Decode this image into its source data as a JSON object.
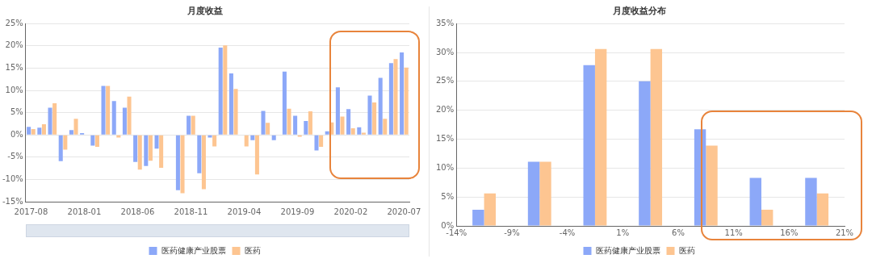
{
  "chart_data": [
    {
      "type": "bar",
      "title": "月度收益",
      "categories": [
        "2017-08",
        null,
        null,
        null,
        null,
        "2018-01",
        null,
        null,
        null,
        null,
        "2018-06",
        null,
        null,
        null,
        null,
        "2018-11",
        null,
        null,
        null,
        null,
        "2019-04",
        null,
        null,
        null,
        null,
        "2019-09",
        null,
        null,
        null,
        null,
        "2020-02",
        null,
        null,
        null,
        null,
        "2020-07"
      ],
      "series": [
        {
          "name": "医药健康产业股票",
          "color": "#8ca8f8",
          "values": [
            1.8,
            1.6,
            6.1,
            -5.9,
            1.1,
            0.4,
            -2.4,
            11.0,
            7.6,
            6.1,
            -6.1,
            -7.0,
            -3.1,
            0,
            -12.4,
            4.3,
            -8.6,
            -0.6,
            19.6,
            13.8,
            0,
            -1.2,
            5.4,
            -1.2,
            14.2,
            4.3,
            3.1,
            -3.5,
            0.8,
            10.7,
            5.8,
            1.7,
            8.8,
            12.8,
            16.1,
            18.5
          ]
        },
        {
          "name": "医药",
          "color": "#fdc591",
          "values": [
            1.3,
            2.4,
            7.1,
            -3.3,
            3.6,
            null,
            -2.7,
            11.0,
            -0.6,
            8.6,
            -7.8,
            -5.8,
            -7.4,
            0,
            -13.1,
            4.3,
            -12.2,
            -2.6,
            20.1,
            10.3,
            -2.6,
            -8.9,
            2.7,
            0,
            5.9,
            -0.4,
            5.3,
            -2.7,
            2.8,
            4.1,
            1.5,
            0.5,
            7.3,
            3.6,
            17.0,
            15.1
          ]
        }
      ],
      "ylim": [
        -15,
        25
      ],
      "yticks": [
        {
          "value": -15,
          "label": "-15%"
        },
        {
          "value": -10,
          "label": "-10%"
        },
        {
          "value": -5,
          "label": "-5%"
        },
        {
          "value": 0,
          "label": "0%"
        },
        {
          "value": 5,
          "label": "5%"
        },
        {
          "value": 10,
          "label": "10%"
        },
        {
          "value": 15,
          "label": "15%"
        },
        {
          "value": 20,
          "label": "20%"
        },
        {
          "value": 25,
          "label": "25%"
        }
      ],
      "grid": "y",
      "legend": "bottom"
    },
    {
      "type": "histogram",
      "title": "月度收益分布",
      "bins": [
        -14,
        -9,
        -4,
        1,
        6,
        11,
        16,
        21
      ],
      "series": [
        {
          "name": "医药健康产业股票",
          "color": "#8ca8f8",
          "values": [
            2.8,
            11.1,
            27.8,
            25,
            16.7,
            8.3,
            8.3
          ]
        },
        {
          "name": "医药",
          "color": "#fdc591",
          "values": [
            5.6,
            11.1,
            30.6,
            30.6,
            13.9,
            2.8,
            5.6
          ]
        }
      ],
      "xlim": [
        -14,
        21
      ],
      "xticks": [
        {
          "value": -14,
          "label": "-14%"
        },
        {
          "value": -9,
          "label": "-9%"
        },
        {
          "value": -4,
          "label": "-4%"
        },
        {
          "value": 1,
          "label": "1%"
        },
        {
          "value": 6,
          "label": "6%"
        },
        {
          "value": 11,
          "label": "11%"
        },
        {
          "value": 16,
          "label": "16%"
        },
        {
          "value": 21,
          "label": "21%"
        }
      ],
      "ylim": [
        0,
        35
      ],
      "yticks": [
        {
          "value": 0,
          "label": "0%"
        },
        {
          "value": 5,
          "label": "5%"
        },
        {
          "value": 10,
          "label": "10%"
        },
        {
          "value": 15,
          "label": "15%"
        },
        {
          "value": 20,
          "label": "20%"
        },
        {
          "value": 25,
          "label": "25%"
        },
        {
          "value": 30,
          "label": "30%"
        },
        {
          "value": 35,
          "label": "35%"
        }
      ],
      "grid": "y",
      "legend": "bottom"
    }
  ]
}
